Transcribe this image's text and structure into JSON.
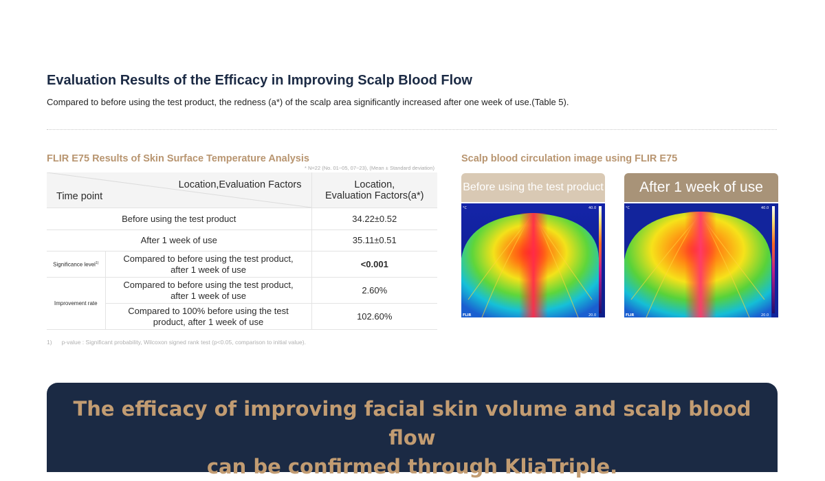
{
  "header": {
    "title": "Evaluation Results of the Efficacy in Improving Scalp Blood Flow",
    "subtitle": "Compared to before using the test product, the redness (a*) of the scalp area significantly increased after one week of use.(Table 5)."
  },
  "table_section": {
    "title": "FLIR E75 Results of Skin Surface Temperature Analysis",
    "note": "* N=22 (No. 01~05, 07~23), (Mean ± Standard deviation)",
    "head": {
      "diag_top": "Location,Evaluation Factors",
      "diag_bottom": "Time point",
      "value_col_line1": "Location,",
      "value_col_line2": "Evaluation Factors(a*)"
    },
    "rows": [
      {
        "label": "Before using the test product",
        "value": "34.22±0.52"
      },
      {
        "label": "After 1 week of use",
        "value": "35.11±0.51"
      },
      {
        "group": "Significance level",
        "group_sup": "1)",
        "label_line1": "Compared to before using the test product,",
        "label_line2": "after 1 week of use",
        "value": "<0.001"
      },
      {
        "group": "Improvement rate",
        "label_line1": "Compared to before using the test product,",
        "label_line2": "after 1 week of use",
        "value": "2.60%"
      },
      {
        "label_line1": "Compared to 100% before using the test",
        "label_line2": "product, after 1 week of use",
        "value": "102.60%"
      }
    ],
    "footnote_num": "1)",
    "footnote_text": "p-value : Significant probability, Wilcoxon signed rank test (p<0.05, comparison to initial value)."
  },
  "image_section": {
    "title": "Scalp blood circulation image using FLIR E75",
    "before_label": "Before using the test product",
    "after_label": "After 1 week of use",
    "thermal_scale_max": "40.0",
    "thermal_scale_min": "20.0",
    "thermal_brand": "FLIR",
    "unit": "°C"
  },
  "banner": {
    "line1": "The efficacy of improving facial skin volume and scalp blood flow",
    "line2": "can be confirmed through KliaTriple."
  },
  "colors": {
    "navy": "#1b2a44",
    "gold": "#b89570",
    "banner_text": "#c29c72",
    "label_before": "#d9c9b4",
    "label_after": "#a89378"
  }
}
